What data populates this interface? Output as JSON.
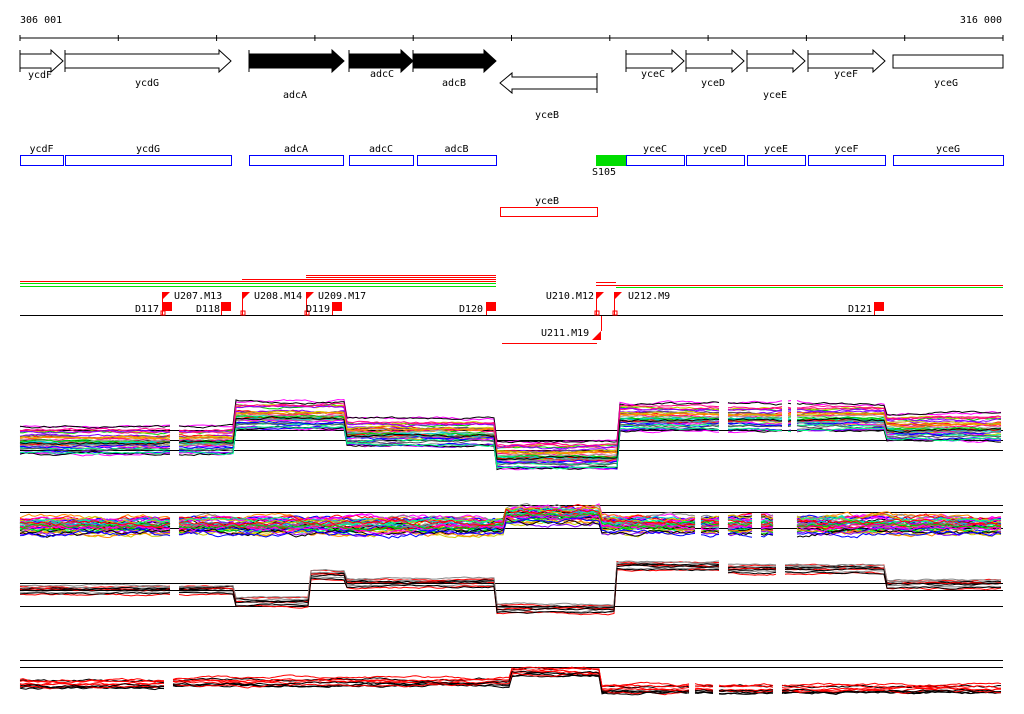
{
  "ruler": {
    "start_label": "306 001",
    "end_label": "316 000"
  },
  "genes": [
    {
      "name": "ycdF",
      "strand": "+",
      "fill": "white"
    },
    {
      "name": "ycdG",
      "strand": "+",
      "fill": "white"
    },
    {
      "name": "adcA",
      "strand": "+",
      "fill": "black"
    },
    {
      "name": "adcC",
      "strand": "+",
      "fill": "black"
    },
    {
      "name": "adcB",
      "strand": "+",
      "fill": "black"
    },
    {
      "name": "yceB",
      "strand": "-",
      "fill": "white"
    },
    {
      "name": "yceC",
      "strand": "+",
      "fill": "white"
    },
    {
      "name": "yceD",
      "strand": "+",
      "fill": "white"
    },
    {
      "name": "yceE",
      "strand": "+",
      "fill": "white"
    },
    {
      "name": "yceF",
      "strand": "+",
      "fill": "white"
    },
    {
      "name": "yceG",
      "strand": "+",
      "fill": "white"
    }
  ],
  "annotation_boxes": {
    "forward": [
      "ycdF",
      "ycdG",
      "adcA",
      "adcC",
      "adcB",
      "yceC",
      "yceD",
      "yceE",
      "yceF",
      "yceG"
    ],
    "reverse": [
      "yceB"
    ],
    "feature": {
      "name": "S105",
      "color": "#00dd00"
    }
  },
  "markers": {
    "upstream": [
      "U207.M13",
      "U208.M14",
      "U209.M17",
      "U210.M12",
      "U212.M9"
    ],
    "downstream": [
      "D117",
      "D118",
      "D119",
      "D120",
      "D121"
    ],
    "reverse": [
      "U211.M19"
    ]
  },
  "colors": {
    "forward_box": "#0000ff",
    "reverse_box": "#ff0000",
    "marker": "#ff0000",
    "segment_green": "#00dd00"
  }
}
